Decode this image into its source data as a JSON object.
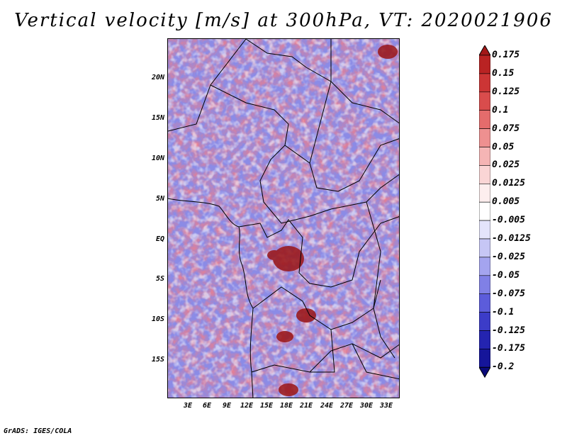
{
  "title": "Vertical velocity [m/s] at 300hPa, VT: 2020021906",
  "credit": "GrADS: IGES/COLA",
  "lat_ticks": [
    "20N",
    "15N",
    "10N",
    "5N",
    "EQ",
    "5S",
    "10S",
    "15S"
  ],
  "lon_ticks": [
    "3E",
    "6E",
    "9E",
    "12E",
    "15E",
    "18E",
    "21E",
    "24E",
    "27E",
    "30E",
    "33E"
  ],
  "colorbar": {
    "labels": [
      "0.175",
      "0.15",
      "0.125",
      "0.1",
      "0.075",
      "0.05",
      "0.025",
      "0.0125",
      "0.005",
      "-0.005",
      "-0.0125",
      "-0.025",
      "-0.05",
      "-0.075",
      "-0.1",
      "-0.125",
      "-0.175",
      "-0.2"
    ],
    "colors": [
      "#a31818",
      "#b92323",
      "#cc3535",
      "#d94c4c",
      "#e46c6c",
      "#ee9090",
      "#f5b5b5",
      "#fad5d5",
      "#fdeeee",
      "#ffffff",
      "#e4e4fb",
      "#c6c6f5",
      "#a4a4ef",
      "#8080e6",
      "#5c5cdb",
      "#3c3cc8",
      "#2424b0",
      "#15159a",
      "#0a0a7a"
    ]
  },
  "colors": {
    "positive": "#cc3535",
    "negative": "#3c3cc8",
    "neutral": "#ffffff"
  }
}
